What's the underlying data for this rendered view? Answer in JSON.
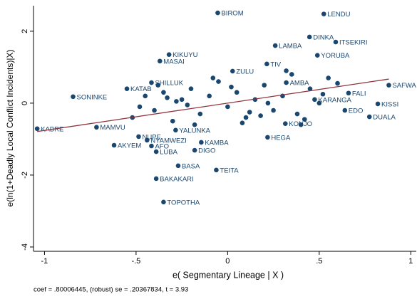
{
  "chart_data": {
    "type": "scatter",
    "x_label": "e( Segmentary Lineage | X )",
    "y_label": "e(ln(1+Deadly Local Conflict Incidents)|X)",
    "note": "coef = .80006445, (robust) se = .20367834, t = 3.93",
    "xlim": [
      -1.06,
      1.03
    ],
    "ylim": [
      -4.12,
      2.71
    ],
    "xticks": [
      -1,
      {
        "value": -0.5,
        "label": "-.5"
      },
      0,
      {
        "value": 0.5,
        "label": ".5"
      },
      1
    ],
    "yticks": [
      -4,
      -2,
      0,
      2
    ],
    "color": "#1a476f",
    "fit_color": "#90353b",
    "fit": {
      "x": [
        -1.04,
        0.88
      ],
      "y": [
        -0.79,
        0.67
      ]
    },
    "x": [
      -0.054,
      0.525,
      0.447,
      0.59,
      0.26,
      0.49,
      -0.32,
      -0.37,
      -0.844,
      -1.04,
      -0.716,
      0.88,
      0.82,
      0.774,
      0.64,
      0.66,
      -0.486,
      -0.62,
      -0.416,
      -0.39,
      -0.44,
      -0.144,
      -0.18,
      -0.27,
      -0.39,
      -0.062,
      -0.35,
      -0.284,
      -0.55,
      -0.416,
      0.218,
      0.315,
      0.214,
      0.027,
      0.32,
      0.475,
      -0.52,
      -0.45,
      -0.4,
      -0.35,
      -0.3,
      -0.25,
      -0.2,
      -0.15,
      -0.1,
      -0.05,
      0.0,
      0.05,
      0.1,
      0.15,
      0.2,
      0.25,
      0.3,
      0.35,
      0.4,
      0.45,
      0.5,
      0.55,
      -0.48,
      -0.38,
      -0.28,
      -0.18,
      -0.08,
      0.02,
      0.12,
      0.22,
      0.32,
      0.42,
      0.52,
      0.6,
      -0.22,
      0.08,
      0.38,
      -0.33,
      0.18
    ],
    "y": [
      2.51,
      2.48,
      1.84,
      1.7,
      1.6,
      1.33,
      1.35,
      1.17,
      0.18,
      -0.71,
      -0.67,
      0.5,
      -0.02,
      -0.38,
      -0.2,
      0.28,
      -0.93,
      -1.17,
      -1.19,
      -1.35,
      -1.03,
      -1.09,
      -1.31,
      -1.74,
      -2.1,
      -1.86,
      -2.75,
      -0.75,
      0.4,
      0.57,
      -0.95,
      -0.57,
      1.09,
      0.89,
      0.57,
      0.1,
      -0.4,
      0.2,
      -0.2,
      0.3,
      -0.5,
      0.1,
      0.4,
      -0.3,
      0.2,
      0.6,
      -0.1,
      0.3,
      -0.4,
      0.1,
      0.5,
      -0.2,
      0.2,
      0.8,
      -0.6,
      0.4,
      0.0,
      0.7,
      -0.1,
      0.5,
      0.05,
      -0.6,
      0.7,
      0.45,
      -0.25,
      0.0,
      0.9,
      -0.45,
      0.25,
      0.55,
      -0.05,
      -0.55,
      -0.3,
      0.15,
      -0.35
    ],
    "labels": [
      "BIROM",
      "LENDU",
      "DINKA",
      "ITSEKIRI",
      "LAMBA",
      "YORUBA",
      "KIKUYU",
      "MASAI",
      "SONINKE",
      "KABRE",
      "MAMVU",
      "SAFWA",
      "KISSI",
      "DUALA",
      "EDO",
      "FALI",
      "NUPE",
      "AKYEM",
      "AFO",
      "LUBA",
      "NYAMWEZI",
      "KAMBA",
      "DIGO",
      "BASA",
      "BAKAKARI",
      "TEITA",
      "TOPOTHA",
      "YALUNKA",
      "KATAB",
      "SHILLUK",
      "HEGA",
      "KONJO",
      "TIV",
      "ZULU",
      "AMBA",
      "KARANGA",
      null,
      null,
      null,
      null,
      null,
      null,
      null,
      null,
      null,
      null,
      null,
      null,
      null,
      null,
      null,
      null,
      null,
      null,
      null,
      null,
      null,
      null,
      null,
      null,
      null,
      null,
      null,
      null,
      null,
      null,
      null,
      null,
      null,
      null,
      null,
      null,
      null,
      null,
      null
    ]
  }
}
